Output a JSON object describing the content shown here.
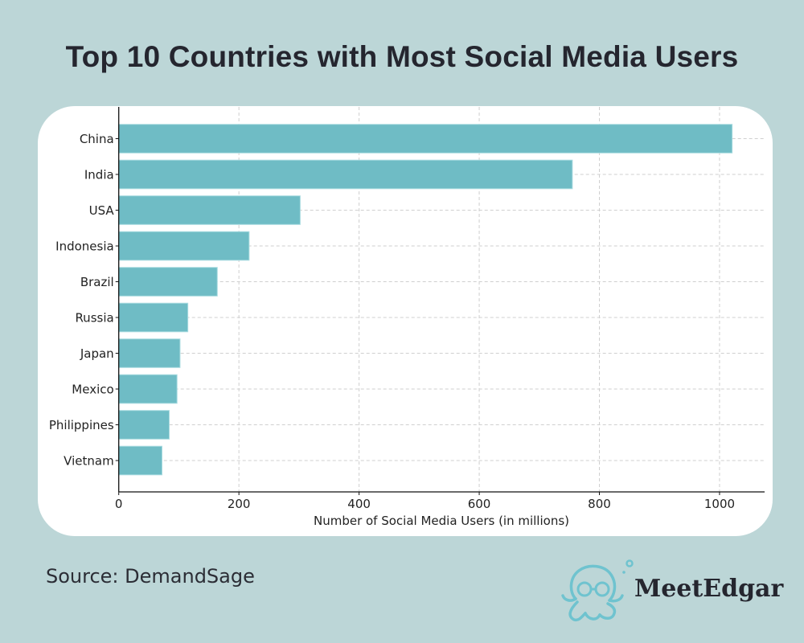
{
  "title": "Top 10 Countries with Most Social Media Users",
  "source": "Source: DemandSage",
  "brand": {
    "name": "MeetEdgar",
    "logo_icon": "octopus-icon"
  },
  "colors": {
    "background": "#bcd6d7",
    "bar": "#6fbcc5",
    "text": "#25262f",
    "grid": "#cccccc"
  },
  "chart_data": {
    "type": "bar",
    "orientation": "horizontal",
    "title": "Top 10 Countries with Most Social Media Users",
    "xlabel": "Number of Social Media Users (in millions)",
    "ylabel": "",
    "categories": [
      "China",
      "India",
      "USA",
      "Indonesia",
      "Brazil",
      "Russia",
      "Japan",
      "Mexico",
      "Philippines",
      "Vietnam"
    ],
    "values": [
      1021,
      755,
      302,
      217,
      164,
      115,
      102,
      97,
      84,
      72
    ],
    "xlim": [
      0,
      1075
    ],
    "xticks": [
      0,
      200,
      400,
      600,
      800,
      1000
    ],
    "xtick_labels": [
      "0",
      "200",
      "400",
      "600",
      "800",
      "1000"
    ],
    "grid": true,
    "legend": "none"
  }
}
